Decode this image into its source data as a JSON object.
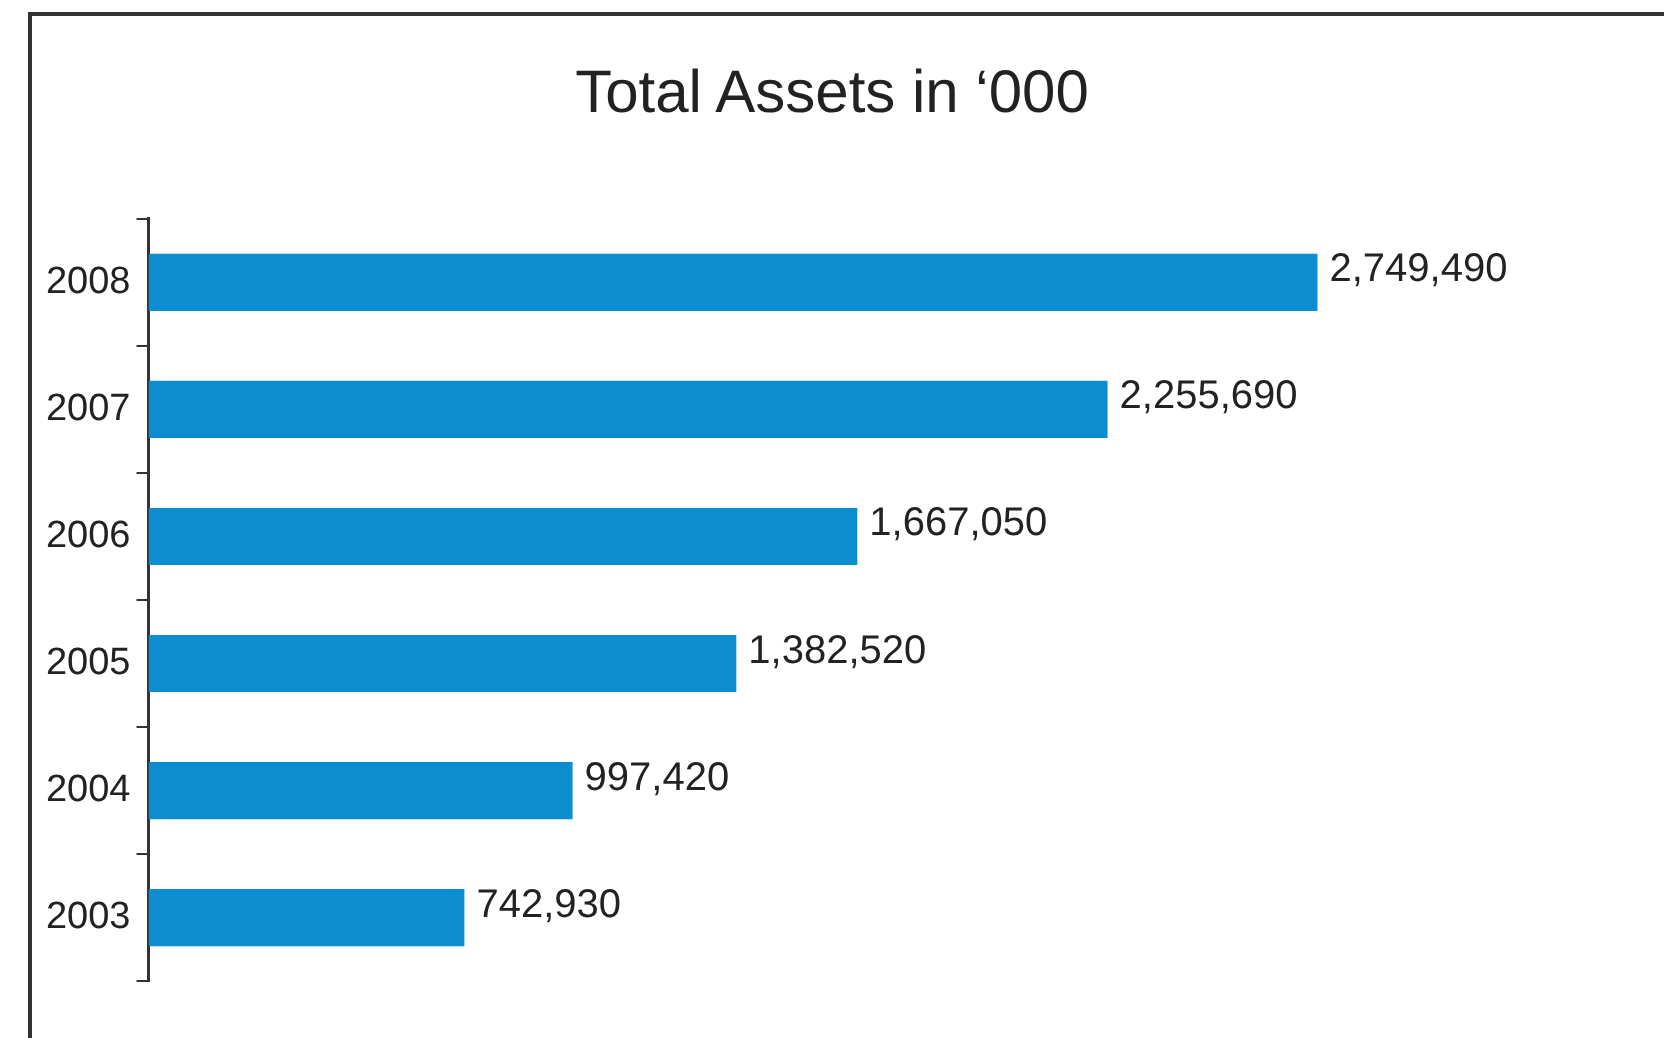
{
  "chart_data": {
    "type": "bar",
    "orientation": "horizontal",
    "title": "Total Assets in ‘000",
    "categories": [
      "2008",
      "2007",
      "2006",
      "2005",
      "2004",
      "2003"
    ],
    "values": [
      2749490,
      2255690,
      1667050,
      1382520,
      997420,
      742930
    ],
    "value_labels": [
      "2,749,490",
      "2,255,690",
      "1,667,050",
      "1,382,520",
      "997,420",
      "742,930"
    ],
    "color": "#0b8dcf",
    "grid": false,
    "legend": false
  }
}
